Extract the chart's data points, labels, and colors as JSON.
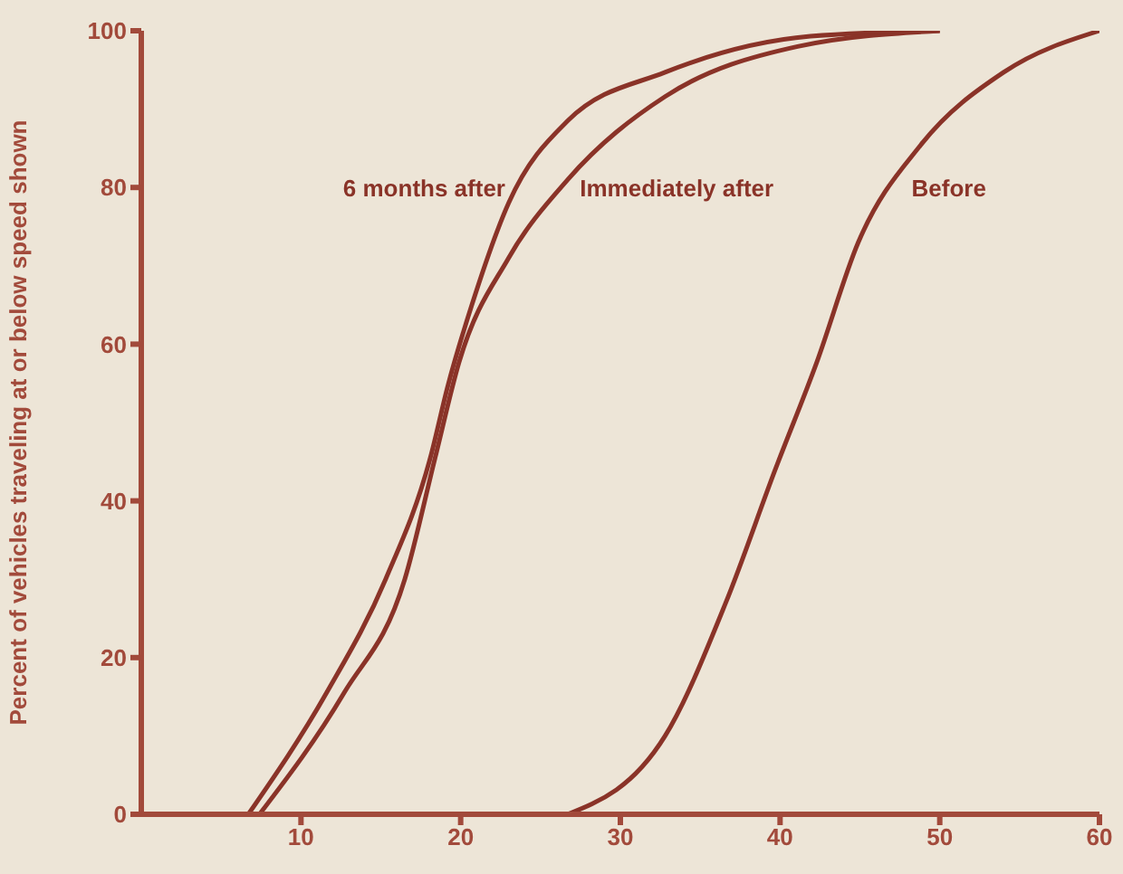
{
  "chart_data": {
    "type": "line",
    "ylabel": "Percent of vehicles traveling at or below speed shown",
    "xlim": [
      0,
      60
    ],
    "xticks": [
      10,
      20,
      30,
      40,
      50,
      60
    ],
    "ylim": [
      0,
      100
    ],
    "yticks": [
      0,
      20,
      40,
      60,
      80,
      100
    ],
    "marker": "none",
    "line_style": "solid",
    "series": [
      {
        "name": "6 months after",
        "color": "#8a3328",
        "x": [
          6.7,
          11.6,
          15.3,
          18.1,
          19.2,
          20.7,
          23,
          26.7,
          32.8,
          41.9,
          50
        ],
        "values": [
          0,
          15.5,
          30,
          45.5,
          54.7,
          65,
          78,
          88.5,
          94.7,
          99.3,
          100
        ]
      },
      {
        "name": "Immediately after",
        "color": "#8a3328",
        "x": [
          7.4,
          12.7,
          16.5,
          18.4,
          19.9,
          23,
          26.7,
          32.8,
          41.1,
          50
        ],
        "values": [
          0,
          15.5,
          30,
          45.5,
          57.7,
          71,
          81,
          91.6,
          98,
          100
        ]
      },
      {
        "name": "Before",
        "color": "#8a3328",
        "x": [
          26.7,
          32.8,
          36.6,
          39.7,
          42.3,
          44.9,
          48.8,
          54,
          60
        ],
        "values": [
          0,
          10,
          27,
          44,
          57.7,
          73,
          85.4,
          94.7,
          100
        ]
      }
    ]
  }
}
